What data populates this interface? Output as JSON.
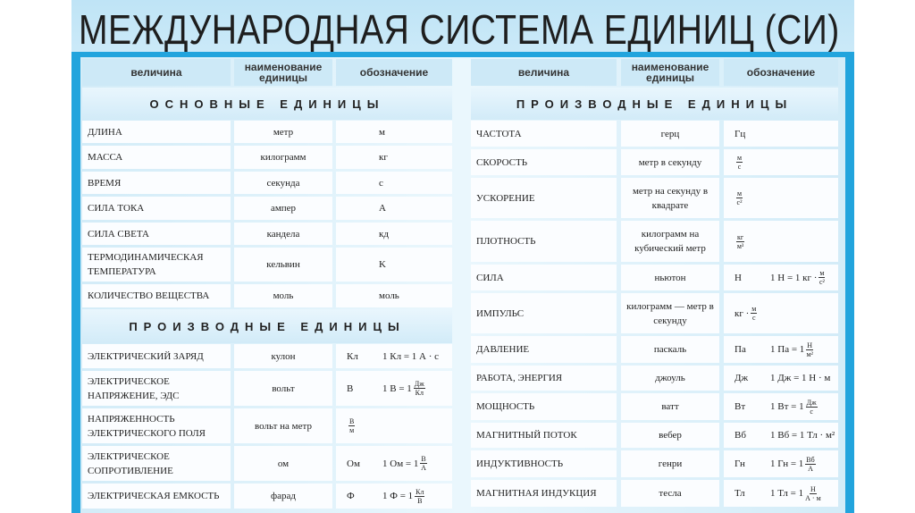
{
  "title": "МЕЖДУНАРОДНАЯ СИСТЕМА ЕДИНИЦ (СИ)",
  "colors": {
    "frame": "#22a4dd",
    "header": "#cde9f7",
    "cell": "#fbfdff"
  },
  "headers": [
    "величина",
    "наименование единицы",
    "обозначение"
  ],
  "left": {
    "basic_title": "ОСНОВНЫЕ ЕДИНИЦЫ",
    "basic_rows": [
      {
        "q": "Длина",
        "u": "метр",
        "s": {
          "text": "м"
        }
      },
      {
        "q": "Масса",
        "u": "килограмм",
        "s": {
          "text": "кг"
        }
      },
      {
        "q": "Время",
        "u": "секунда",
        "s": {
          "text": "с"
        }
      },
      {
        "q": "Сила тока",
        "u": "ампер",
        "s": {
          "text": "А"
        }
      },
      {
        "q": "Сила света",
        "u": "кандела",
        "s": {
          "text": "кд"
        }
      },
      {
        "q": "Термодинамическая температура",
        "u": "кельвин",
        "s": {
          "text": "K"
        }
      },
      {
        "q": "Количество вещества",
        "u": "моль",
        "s": {
          "text": "моль"
        }
      }
    ],
    "derived_title": "ПРОИЗВОДНЫЕ ЕДИНИЦЫ",
    "derived_rows": [
      {
        "q": "Электрический заряд",
        "u": "кулон",
        "s": {
          "text": "Кл"
        },
        "f": {
          "text": "1 Кл = 1 А · с"
        }
      },
      {
        "q": "Электрическое напряжение, ЭДС",
        "u": "вольт",
        "s": {
          "text": "В"
        },
        "f": {
          "text": "1 В = 1",
          "num": "Дж",
          "den": "Кл"
        }
      },
      {
        "q": "Напряженность электрического поля",
        "u": "вольт на метр",
        "s": {
          "num": "В",
          "den": "м"
        }
      },
      {
        "q": "Электрическое сопротивление",
        "u": "ом",
        "s": {
          "text": "Ом"
        },
        "f": {
          "text": "1 Ом = 1",
          "num": "В",
          "den": "А"
        }
      },
      {
        "q": "Электрическая емкость",
        "u": "фарад",
        "s": {
          "text": "Ф"
        },
        "f": {
          "text": "1 Ф = 1",
          "num": "Кл",
          "den": "В"
        }
      }
    ]
  },
  "right": {
    "title": "ПРОИЗВОДНЫЕ ЕДИНИЦЫ",
    "rows": [
      {
        "q": "Частота",
        "u": "герц",
        "s": {
          "text": "Гц"
        }
      },
      {
        "q": "Скорость",
        "u": "метр в секунду",
        "s": {
          "num": "м",
          "den": "с"
        }
      },
      {
        "q": "Ускорение",
        "u": "метр на секунду в квадрате",
        "s": {
          "num": "м",
          "den": "с²"
        }
      },
      {
        "q": "Плотность",
        "u": "килограмм на кубический метр",
        "s": {
          "num": "кг",
          "den": "м³"
        }
      },
      {
        "q": "Сила",
        "u": "ньютон",
        "s": {
          "text": "Н"
        },
        "f": {
          "text": "1 Н = 1 кг ·",
          "num": "м",
          "den": "с²"
        }
      },
      {
        "q": "Импульс",
        "u": "килограмм — метр в секунду",
        "s": {
          "text": "кг ·",
          "num": "м",
          "den": "с"
        }
      },
      {
        "q": "Давление",
        "u": "паскаль",
        "s": {
          "text": "Па"
        },
        "f": {
          "text": "1 Па = 1",
          "num": "Н",
          "den": "м²"
        }
      },
      {
        "q": "Работа, энергия",
        "u": "джоуль",
        "s": {
          "text": "Дж"
        },
        "f": {
          "text": "1 Дж = 1 Н · м"
        }
      },
      {
        "q": "Мощность",
        "u": "ватт",
        "s": {
          "text": "Вт"
        },
        "f": {
          "text": "1 Вт = 1",
          "num": "Дж",
          "den": "с"
        }
      },
      {
        "q": "Магнитный поток",
        "u": "вебер",
        "s": {
          "text": "Вб"
        },
        "f": {
          "text": "1 Вб = 1 Тл · м²"
        }
      },
      {
        "q": "Индуктивность",
        "u": "генри",
        "s": {
          "text": "Гн"
        },
        "f": {
          "text": "1 Гн = 1",
          "num": "Вб",
          "den": "А"
        }
      },
      {
        "q": "Магнитная индукция",
        "u": "тесла",
        "s": {
          "text": "Тл"
        },
        "f": {
          "text": "1 Тл = 1",
          "num": "Н",
          "den": "А · м"
        }
      }
    ]
  }
}
